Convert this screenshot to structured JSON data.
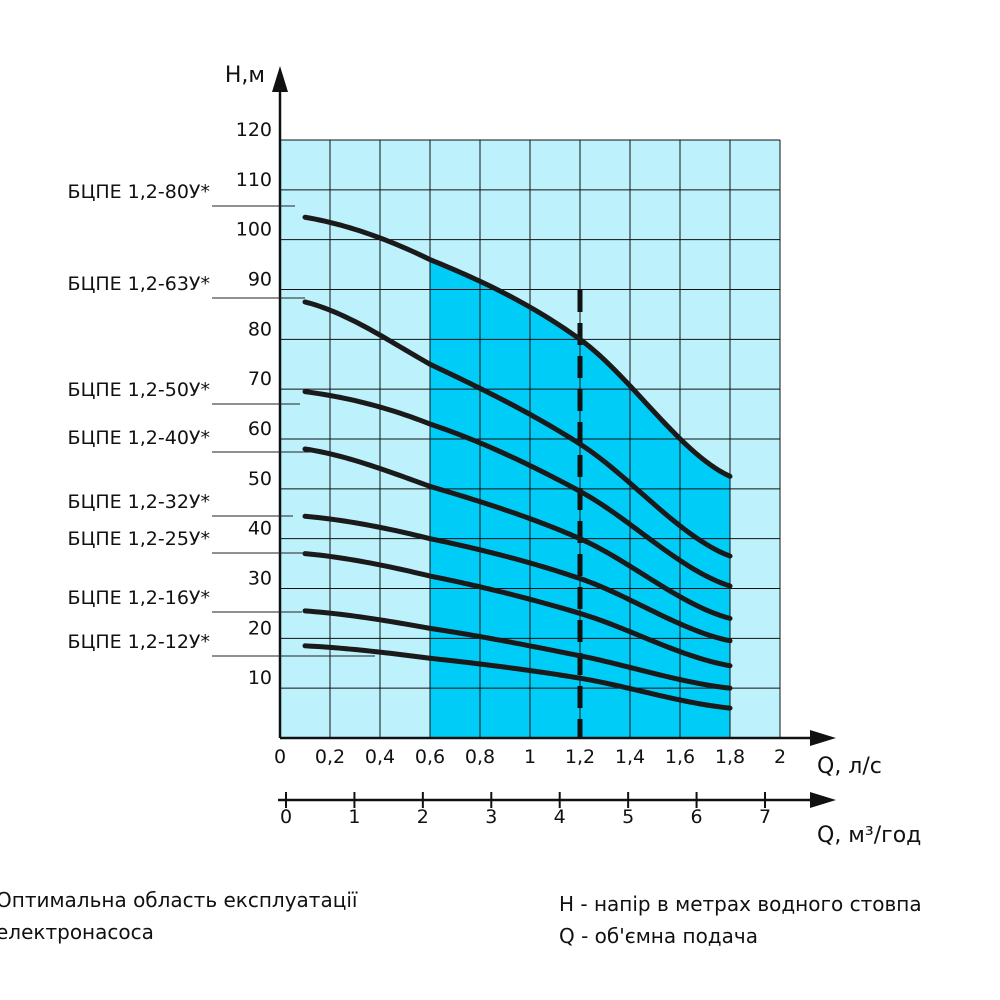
{
  "colors": {
    "background_region": "#bdf2fd",
    "optimal_region": "#00cdf7",
    "grid": "#111111",
    "curve": "#1a1a1a"
  },
  "chart_data": {
    "type": "line",
    "y_axis_label": "H,м",
    "x_axis_label": "Q, л/с",
    "x2_axis_label": "Q, м³/год",
    "xlim": [
      0,
      2
    ],
    "ylim": [
      0,
      120
    ],
    "x_ticks": [
      "0",
      "0,2",
      "0,4",
      "0,6",
      "0,8",
      "1",
      "1,2",
      "1,4",
      "1,6",
      "1,8",
      "2"
    ],
    "y_ticks": [
      "10",
      "20",
      "30",
      "40",
      "50",
      "60",
      "70",
      "80",
      "90",
      "100",
      "110",
      "120"
    ],
    "x2_ticks": [
      "0",
      "1",
      "2",
      "3",
      "4",
      "5",
      "6",
      "7"
    ],
    "grid": true,
    "optimal_region": {
      "x_from": 0.6,
      "x_to": 1.8
    },
    "reference_line_x": 1.2,
    "series": [
      {
        "name": "БЦПЕ 1,2-80У*",
        "x": [
          0.1,
          0.6,
          1.2,
          1.8
        ],
        "y": [
          104.5,
          96,
          80,
          52.5
        ]
      },
      {
        "name": "БЦПЕ 1,2-63У*",
        "x": [
          0.1,
          0.6,
          1.2,
          1.8
        ],
        "y": [
          87.5,
          75,
          59,
          36.5
        ]
      },
      {
        "name": "БЦПЕ 1,2-50У*",
        "x": [
          0.1,
          0.6,
          1.2,
          1.8
        ],
        "y": [
          69.5,
          63,
          49.5,
          30.5
        ]
      },
      {
        "name": "БЦПЕ 1,2-40У*",
        "x": [
          0.1,
          0.6,
          1.2,
          1.8
        ],
        "y": [
          58,
          50.5,
          40,
          24
        ]
      },
      {
        "name": "БЦПЕ 1,2-32У*",
        "x": [
          0.1,
          0.6,
          1.2,
          1.8
        ],
        "y": [
          44.5,
          40,
          32,
          19.5
        ]
      },
      {
        "name": "БЦПЕ 1,2-25У*",
        "x": [
          0.1,
          0.6,
          1.2,
          1.8
        ],
        "y": [
          37,
          32.5,
          25,
          14.5
        ]
      },
      {
        "name": "БЦПЕ 1,2-16У*",
        "x": [
          0.1,
          0.6,
          1.2,
          1.8
        ],
        "y": [
          25.5,
          22,
          16.5,
          10
        ]
      },
      {
        "name": "БЦПЕ 1,2-12У*",
        "x": [
          0.1,
          0.6,
          1.2,
          1.8
        ],
        "y": [
          18.5,
          16,
          12,
          6
        ]
      }
    ]
  },
  "notes": {
    "optimal_line1": "Оптимальна область експлуатації",
    "optimal_line2": "електронасоса",
    "h_def": "H - напір в метрах водного стовпа",
    "q_def": "Q - об'ємна подача"
  }
}
